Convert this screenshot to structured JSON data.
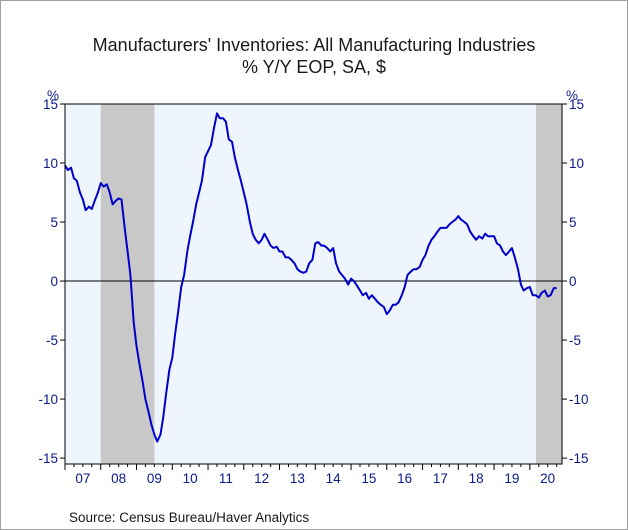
{
  "chart_data": {
    "type": "line",
    "title": "Manufacturers' Inventories: All Manufacturing Industries",
    "subtitle": "% Y/Y   EOP, SA, $",
    "ylabel_left": "%",
    "ylabel_right": "%",
    "source": "Source:  Census Bureau/Haver Analytics",
    "ylim": [
      -15.5,
      15
    ],
    "y_ticks": [
      15,
      10,
      5,
      0,
      -5,
      -10,
      -15
    ],
    "xlim": [
      2007.0,
      2020.9
    ],
    "x_tick_labels": [
      "07",
      "08",
      "09",
      "10",
      "11",
      "12",
      "13",
      "14",
      "15",
      "16",
      "17",
      "18",
      "19",
      "20"
    ],
    "grid": false,
    "zero_line": true,
    "colors": {
      "line": "#0000c8",
      "plot_bg": "#eef5fd",
      "recession": "#c8c8c8",
      "axis_text": "#0a1a8a"
    },
    "recessions": [
      {
        "start": 2008.0,
        "end": 2009.5
      },
      {
        "start": 2020.17,
        "end": 2020.9
      }
    ],
    "series": [
      {
        "x": [
          2007.0,
          2007.08,
          2007.17,
          2007.25,
          2007.33,
          2007.42,
          2007.5,
          2007.58,
          2007.67,
          2007.75,
          2007.83,
          2007.92,
          2008.0,
          2008.08,
          2008.17,
          2008.25,
          2008.33,
          2008.42,
          2008.5,
          2008.58,
          2008.67,
          2008.75,
          2008.83,
          2008.92,
          2009.0,
          2009.08,
          2009.17,
          2009.25,
          2009.33,
          2009.42,
          2009.5,
          2009.58,
          2009.67,
          2009.75,
          2009.83,
          2009.92,
          2010.0,
          2010.08,
          2010.17,
          2010.25,
          2010.33,
          2010.42,
          2010.5,
          2010.58,
          2010.67,
          2010.75,
          2010.83,
          2010.92,
          2011.0,
          2011.08,
          2011.17,
          2011.25,
          2011.33,
          2011.42,
          2011.5,
          2011.58,
          2011.67,
          2011.75,
          2011.83,
          2011.92,
          2012.0,
          2012.08,
          2012.17,
          2012.25,
          2012.33,
          2012.42,
          2012.5,
          2012.58,
          2012.67,
          2012.75,
          2012.83,
          2012.92,
          2013.0,
          2013.08,
          2013.17,
          2013.25,
          2013.33,
          2013.42,
          2013.5,
          2013.58,
          2013.67,
          2013.75,
          2013.83,
          2013.92,
          2014.0,
          2014.08,
          2014.17,
          2014.25,
          2014.33,
          2014.42,
          2014.5,
          2014.58,
          2014.67,
          2014.75,
          2014.83,
          2014.92,
          2015.0,
          2015.08,
          2015.17,
          2015.25,
          2015.33,
          2015.42,
          2015.5,
          2015.58,
          2015.67,
          2015.75,
          2015.83,
          2015.92,
          2016.0,
          2016.08,
          2016.17,
          2016.25,
          2016.33,
          2016.42,
          2016.5,
          2016.58,
          2016.67,
          2016.75,
          2016.83,
          2016.92,
          2017.0,
          2017.08,
          2017.17,
          2017.25,
          2017.33,
          2017.42,
          2017.5,
          2017.58,
          2017.67,
          2017.75,
          2017.83,
          2017.92,
          2018.0,
          2018.08,
          2018.17,
          2018.25,
          2018.33,
          2018.42,
          2018.5,
          2018.58,
          2018.67,
          2018.75,
          2018.83,
          2018.92,
          2019.0,
          2019.08,
          2019.17,
          2019.25,
          2019.33,
          2019.42,
          2019.5,
          2019.58,
          2019.67,
          2019.75,
          2019.83,
          2019.92,
          2020.0,
          2020.08,
          2020.17,
          2020.25,
          2020.33,
          2020.42,
          2020.5,
          2020.58,
          2020.67,
          2020.75
        ],
        "values": [
          9.8,
          9.4,
          9.6,
          8.7,
          8.5,
          7.5,
          6.9,
          6.0,
          6.3,
          6.1,
          6.8,
          7.5,
          8.3,
          8.0,
          8.2,
          7.5,
          6.5,
          6.8,
          7.0,
          6.9,
          4.5,
          2.5,
          0.5,
          -3.5,
          -5.5,
          -7.0,
          -8.5,
          -10.0,
          -11.0,
          -12.2,
          -13.0,
          -13.6,
          -13.0,
          -11.5,
          -9.5,
          -7.5,
          -6.5,
          -4.5,
          -2.5,
          -0.5,
          0.5,
          2.5,
          3.8,
          5.0,
          6.5,
          7.5,
          8.5,
          10.5,
          11.0,
          11.5,
          13.0,
          14.2,
          13.8,
          13.8,
          13.5,
          12.0,
          11.8,
          10.5,
          9.5,
          8.5,
          7.5,
          6.5,
          5.0,
          4.0,
          3.5,
          3.2,
          3.5,
          4.0,
          3.5,
          3.0,
          2.8,
          2.9,
          2.5,
          2.5,
          2.0,
          2.0,
          1.8,
          1.5,
          1.0,
          0.8,
          0.7,
          0.8,
          1.5,
          1.8,
          3.2,
          3.3,
          3.0,
          3.0,
          2.8,
          2.5,
          2.8,
          1.5,
          0.8,
          0.5,
          0.2,
          -0.3,
          0.2,
          0.0,
          -0.4,
          -0.8,
          -1.2,
          -1.0,
          -1.5,
          -1.2,
          -1.5,
          -1.8,
          -2.0,
          -2.2,
          -2.8,
          -2.5,
          -2.0,
          -2.0,
          -1.8,
          -1.2,
          -0.5,
          0.5,
          0.8,
          1.0,
          1.0,
          1.2,
          1.8,
          2.2,
          3.0,
          3.5,
          3.8,
          4.2,
          4.5,
          4.5,
          4.5,
          4.8,
          5.0,
          5.2,
          5.5,
          5.2,
          5.0,
          4.8,
          4.2,
          3.8,
          3.5,
          3.8,
          3.6,
          4.0,
          3.8,
          3.8,
          3.8,
          3.2,
          3.0,
          2.5,
          2.2,
          2.5,
          2.8,
          2.0,
          1.0,
          -0.3,
          -0.8,
          -0.6,
          -0.5,
          -1.2,
          -1.2,
          -1.4,
          -1.0,
          -0.8,
          -1.3,
          -1.2,
          -0.6,
          -0.6
        ]
      }
    ]
  }
}
